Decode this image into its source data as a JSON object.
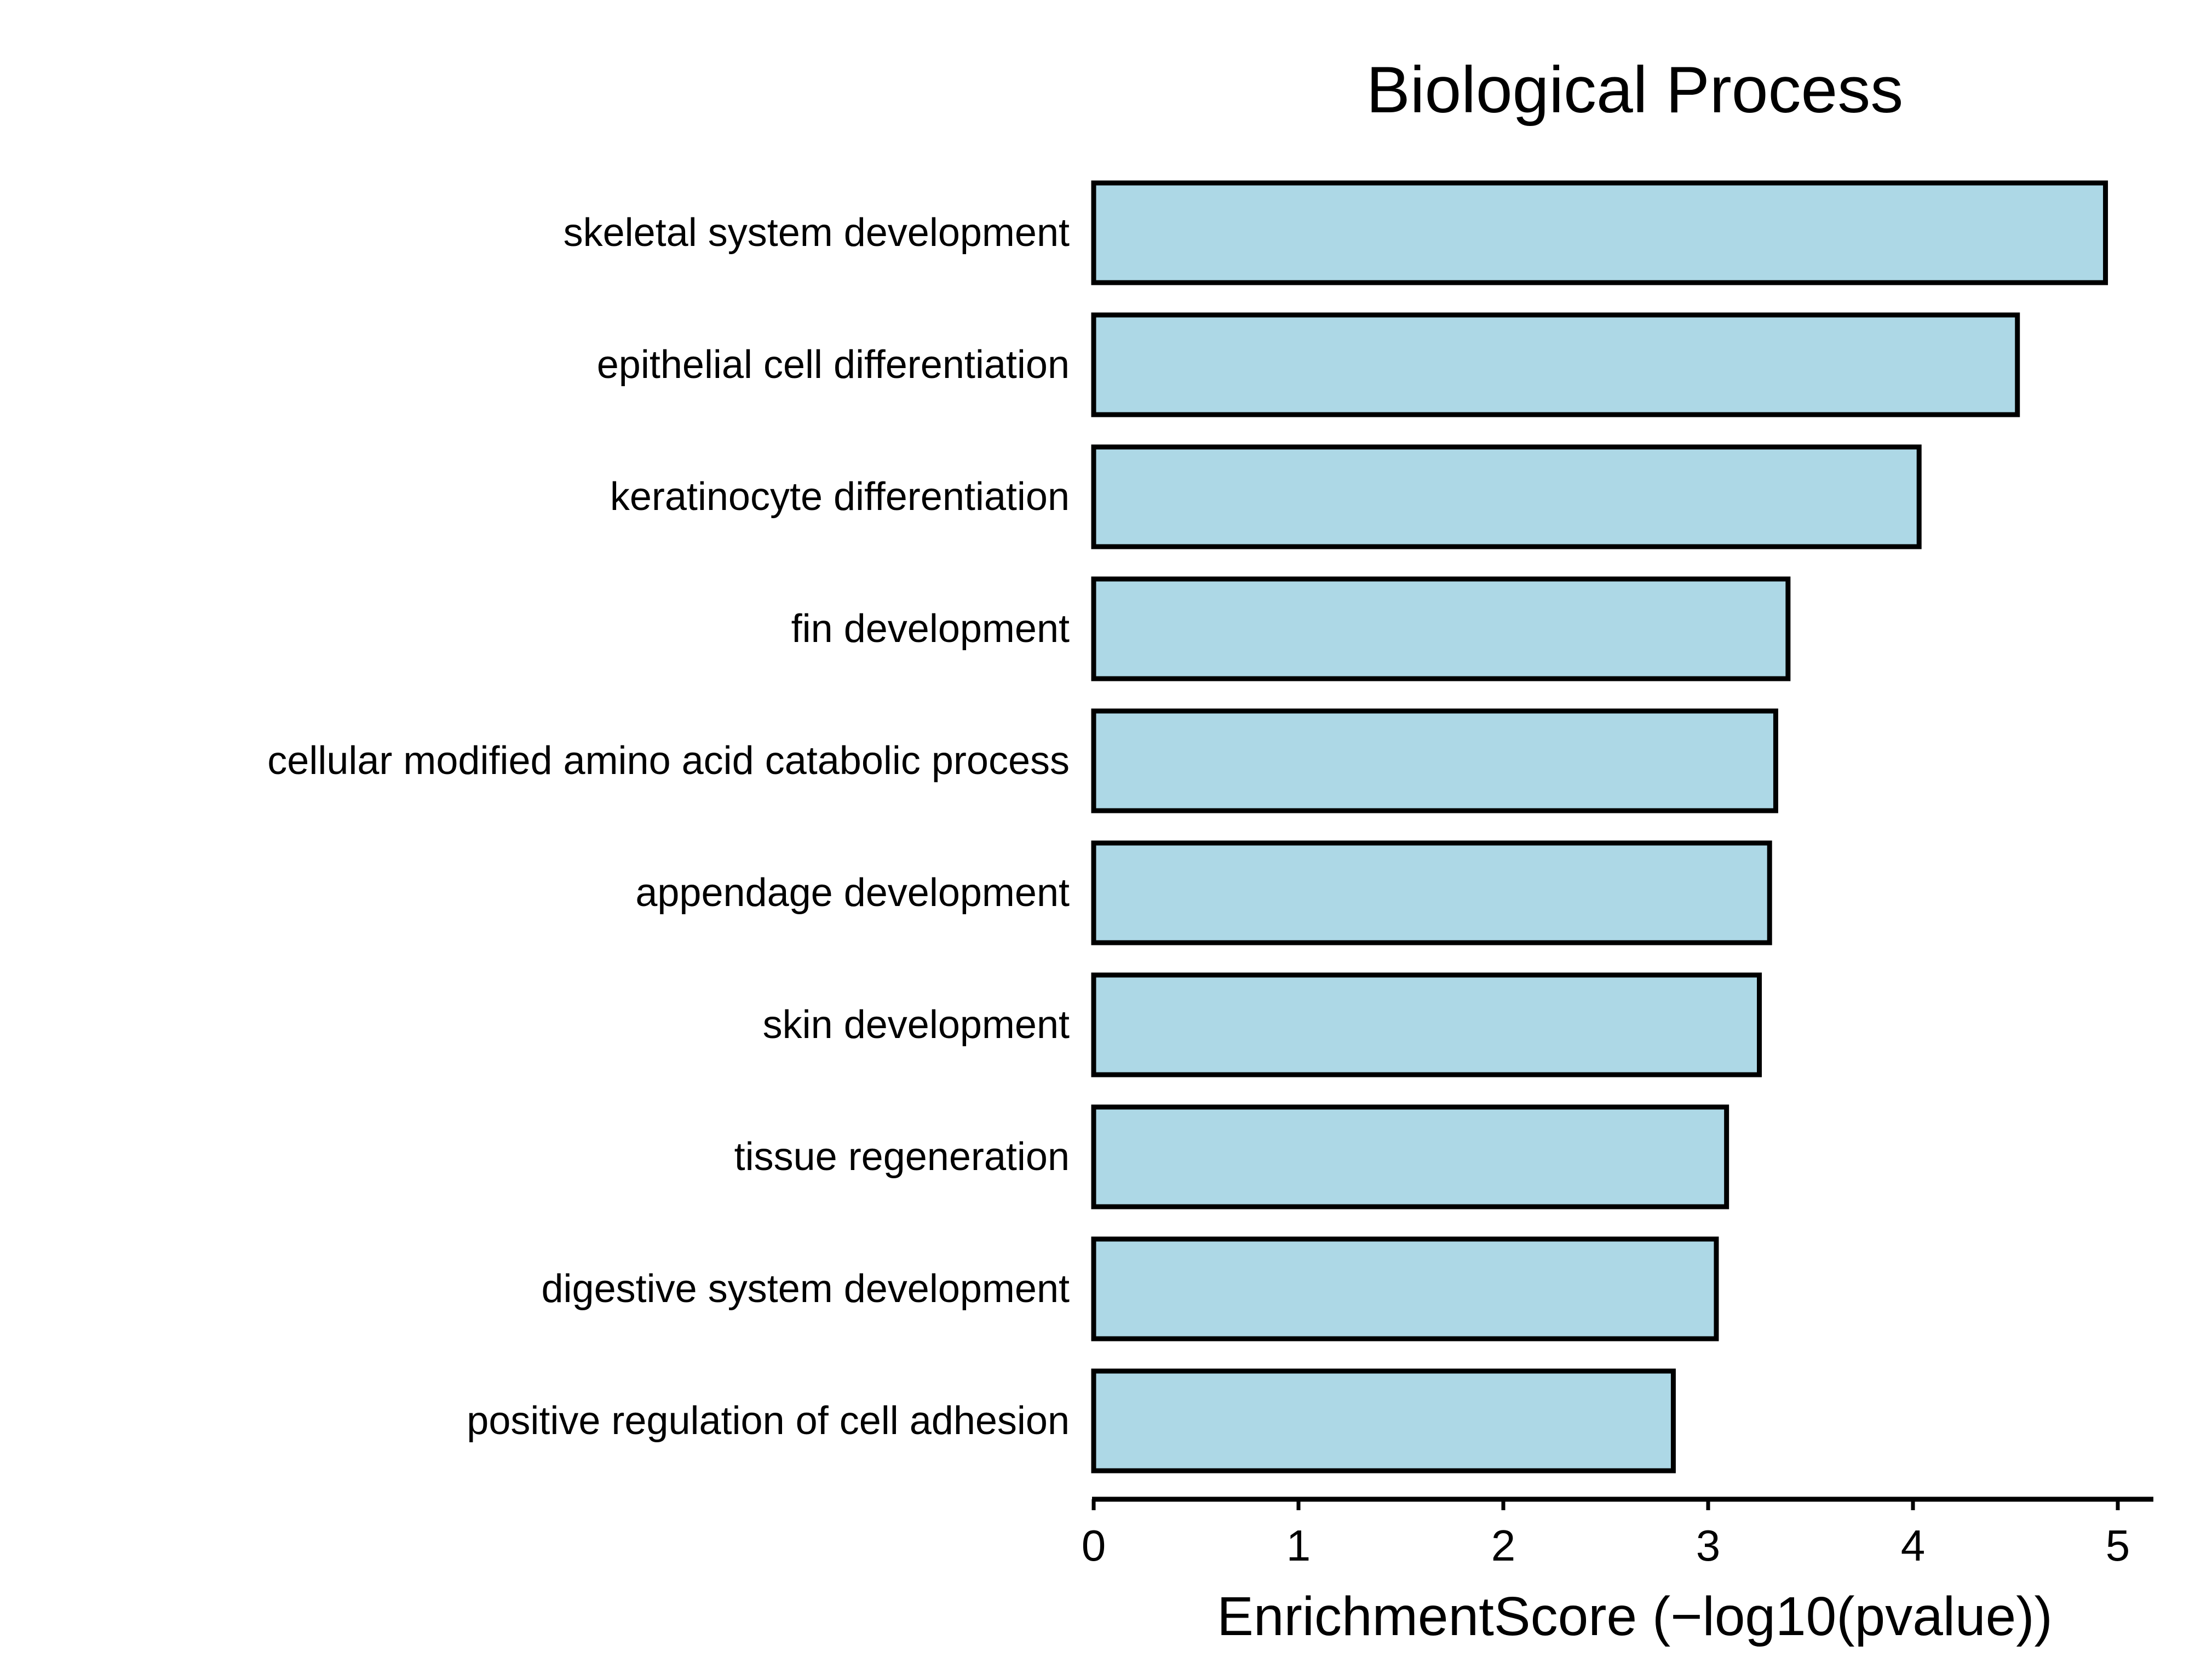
{
  "chart_data": {
    "type": "bar",
    "orientation": "horizontal",
    "title": "Biological Process",
    "xlabel": "EnrichmentScore (−log10(pvalue))",
    "ylabel": "",
    "categories": [
      "skeletal system development",
      "epithelial cell differentiation",
      "keratinocyte differentiation",
      "fin development",
      "cellular modified amino acid catabolic process",
      "appendage development",
      "skin development",
      "tissue regeneration",
      "digestive system development",
      "positive regulation of cell adhesion"
    ],
    "values": [
      4.94,
      4.51,
      4.03,
      3.39,
      3.33,
      3.3,
      3.25,
      3.09,
      3.04,
      2.83
    ],
    "xlim": [
      0,
      5.2
    ],
    "xticks": [
      0,
      1,
      2,
      3,
      4,
      5
    ],
    "grid": false,
    "legend": "none",
    "colors": {
      "bar_fill": "#add8e6",
      "bar_stroke": "#000000",
      "axis": "#000000",
      "background": "#ffffff"
    }
  }
}
